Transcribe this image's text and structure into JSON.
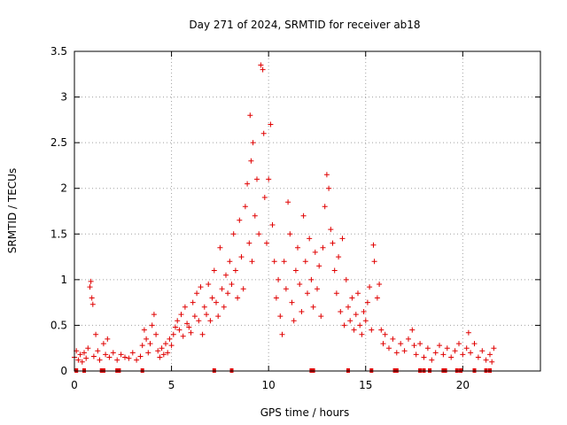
{
  "chart_data": {
    "type": "scatter",
    "title": "Day 271 of 2024, SRMTID for receiver ab18",
    "xlabel": "GPS time / hours",
    "ylabel": "SRMTID / TECUs",
    "xlim": [
      0,
      24
    ],
    "ylim": [
      0,
      3.5
    ],
    "xticks": [
      0,
      5,
      10,
      15,
      20
    ],
    "xtick_labels": [
      "0",
      "5",
      "10",
      "15",
      "20"
    ],
    "yticks": [
      0,
      0.5,
      1,
      1.5,
      2,
      2.5,
      3,
      3.5
    ],
    "ytick_labels": [
      "0",
      "0.5",
      "1",
      "1.5",
      "2",
      "2.5",
      "3",
      "3.5"
    ],
    "grid": true,
    "marker": "+",
    "color": "#e00000",
    "series": [
      {
        "name": "SRMTID",
        "points": [
          [
            0.0,
            0.15
          ],
          [
            0.1,
            0.22
          ],
          [
            0.2,
            0.12
          ],
          [
            0.3,
            0.18
          ],
          [
            0.4,
            0.1
          ],
          [
            0.5,
            0.2
          ],
          [
            0.6,
            0.14
          ],
          [
            0.7,
            0.25
          ],
          [
            0.8,
            0.92
          ],
          [
            0.85,
            0.98
          ],
          [
            0.9,
            0.8
          ],
          [
            0.95,
            0.73
          ],
          [
            1.0,
            0.16
          ],
          [
            1.1,
            0.4
          ],
          [
            1.2,
            0.22
          ],
          [
            1.3,
            0.12
          ],
          [
            1.5,
            0.3
          ],
          [
            1.6,
            0.18
          ],
          [
            1.7,
            0.35
          ],
          [
            1.8,
            0.15
          ],
          [
            2.0,
            0.2
          ],
          [
            2.2,
            0.12
          ],
          [
            2.4,
            0.18
          ],
          [
            2.6,
            0.15
          ],
          [
            2.8,
            0.14
          ],
          [
            3.0,
            0.2
          ],
          [
            3.2,
            0.12
          ],
          [
            3.4,
            0.16
          ],
          [
            3.5,
            0.28
          ],
          [
            3.6,
            0.45
          ],
          [
            3.7,
            0.35
          ],
          [
            3.8,
            0.2
          ],
          [
            3.9,
            0.3
          ],
          [
            4.0,
            0.5
          ],
          [
            4.1,
            0.62
          ],
          [
            4.2,
            0.4
          ],
          [
            4.3,
            0.22
          ],
          [
            4.4,
            0.15
          ],
          [
            4.5,
            0.25
          ],
          [
            4.6,
            0.18
          ],
          [
            4.7,
            0.3
          ],
          [
            4.8,
            0.2
          ],
          [
            4.9,
            0.35
          ],
          [
            5.0,
            0.28
          ],
          [
            5.1,
            0.4
          ],
          [
            5.2,
            0.48
          ],
          [
            5.3,
            0.55
          ],
          [
            5.4,
            0.45
          ],
          [
            5.5,
            0.62
          ],
          [
            5.6,
            0.38
          ],
          [
            5.7,
            0.7
          ],
          [
            5.8,
            0.52
          ],
          [
            5.9,
            0.48
          ],
          [
            6.0,
            0.42
          ],
          [
            6.1,
            0.75
          ],
          [
            6.2,
            0.6
          ],
          [
            6.3,
            0.85
          ],
          [
            6.4,
            0.55
          ],
          [
            6.5,
            0.92
          ],
          [
            6.6,
            0.4
          ],
          [
            6.7,
            0.7
          ],
          [
            6.8,
            0.62
          ],
          [
            6.9,
            0.95
          ],
          [
            7.0,
            0.55
          ],
          [
            7.1,
            0.8
          ],
          [
            7.2,
            1.1
          ],
          [
            7.3,
            0.75
          ],
          [
            7.4,
            0.6
          ],
          [
            7.5,
            1.35
          ],
          [
            7.6,
            0.9
          ],
          [
            7.7,
            0.7
          ],
          [
            7.8,
            1.05
          ],
          [
            7.9,
            0.85
          ],
          [
            8.0,
            1.2
          ],
          [
            8.1,
            0.95
          ],
          [
            8.2,
            1.5
          ],
          [
            8.3,
            1.1
          ],
          [
            8.4,
            0.8
          ],
          [
            8.5,
            1.65
          ],
          [
            8.6,
            1.25
          ],
          [
            8.7,
            0.9
          ],
          [
            8.8,
            1.8
          ],
          [
            8.9,
            2.05
          ],
          [
            9.0,
            1.4
          ],
          [
            9.05,
            2.8
          ],
          [
            9.1,
            2.3
          ],
          [
            9.15,
            1.2
          ],
          [
            9.2,
            2.5
          ],
          [
            9.3,
            1.7
          ],
          [
            9.4,
            2.1
          ],
          [
            9.5,
            1.5
          ],
          [
            9.6,
            3.35
          ],
          [
            9.7,
            3.3
          ],
          [
            9.75,
            2.6
          ],
          [
            9.8,
            1.9
          ],
          [
            9.9,
            1.4
          ],
          [
            10.0,
            2.1
          ],
          [
            10.1,
            2.7
          ],
          [
            10.2,
            1.6
          ],
          [
            10.3,
            1.2
          ],
          [
            10.4,
            0.8
          ],
          [
            10.5,
            1.0
          ],
          [
            10.6,
            0.6
          ],
          [
            10.7,
            0.4
          ],
          [
            10.8,
            1.2
          ],
          [
            10.9,
            0.9
          ],
          [
            11.0,
            1.85
          ],
          [
            11.1,
            1.5
          ],
          [
            11.2,
            0.75
          ],
          [
            11.3,
            0.55
          ],
          [
            11.4,
            1.1
          ],
          [
            11.5,
            1.35
          ],
          [
            11.6,
            0.95
          ],
          [
            11.7,
            0.65
          ],
          [
            11.8,
            1.7
          ],
          [
            11.9,
            1.2
          ],
          [
            12.0,
            0.85
          ],
          [
            12.1,
            1.45
          ],
          [
            12.2,
            1.0
          ],
          [
            12.3,
            0.7
          ],
          [
            12.4,
            1.3
          ],
          [
            12.5,
            0.9
          ],
          [
            12.6,
            1.15
          ],
          [
            12.7,
            0.6
          ],
          [
            12.8,
            1.35
          ],
          [
            12.9,
            1.8
          ],
          [
            13.0,
            2.15
          ],
          [
            13.1,
            2.0
          ],
          [
            13.2,
            1.55
          ],
          [
            13.3,
            1.4
          ],
          [
            13.4,
            1.1
          ],
          [
            13.5,
            0.85
          ],
          [
            13.6,
            1.25
          ],
          [
            13.7,
            0.65
          ],
          [
            13.8,
            1.45
          ],
          [
            13.9,
            0.5
          ],
          [
            14.0,
            1.0
          ],
          [
            14.1,
            0.7
          ],
          [
            14.2,
            0.55
          ],
          [
            14.3,
            0.8
          ],
          [
            14.4,
            0.45
          ],
          [
            14.5,
            0.62
          ],
          [
            14.6,
            0.85
          ],
          [
            14.7,
            0.5
          ],
          [
            14.8,
            0.4
          ],
          [
            14.9,
            0.65
          ],
          [
            15.0,
            0.55
          ],
          [
            15.1,
            0.75
          ],
          [
            15.2,
            0.92
          ],
          [
            15.3,
            0.45
          ],
          [
            15.4,
            1.38
          ],
          [
            15.45,
            1.2
          ],
          [
            15.6,
            0.8
          ],
          [
            15.7,
            0.95
          ],
          [
            15.8,
            0.45
          ],
          [
            15.9,
            0.3
          ],
          [
            16.0,
            0.4
          ],
          [
            16.2,
            0.25
          ],
          [
            16.4,
            0.35
          ],
          [
            16.6,
            0.2
          ],
          [
            16.8,
            0.3
          ],
          [
            17.0,
            0.22
          ],
          [
            17.2,
            0.35
          ],
          [
            17.4,
            0.45
          ],
          [
            17.5,
            0.28
          ],
          [
            17.6,
            0.18
          ],
          [
            17.8,
            0.3
          ],
          [
            18.0,
            0.15
          ],
          [
            18.2,
            0.25
          ],
          [
            18.4,
            0.12
          ],
          [
            18.6,
            0.2
          ],
          [
            18.8,
            0.28
          ],
          [
            19.0,
            0.18
          ],
          [
            19.2,
            0.25
          ],
          [
            19.4,
            0.15
          ],
          [
            19.6,
            0.22
          ],
          [
            19.8,
            0.3
          ],
          [
            20.0,
            0.18
          ],
          [
            20.2,
            0.25
          ],
          [
            20.3,
            0.42
          ],
          [
            20.4,
            0.2
          ],
          [
            20.6,
            0.3
          ],
          [
            20.8,
            0.15
          ],
          [
            21.0,
            0.22
          ],
          [
            21.2,
            0.12
          ],
          [
            21.4,
            0.18
          ],
          [
            21.5,
            0.1
          ],
          [
            21.6,
            0.25
          ]
        ],
        "zero_points_x": [
          0.1,
          0.5,
          1.4,
          1.5,
          2.2,
          2.3,
          3.5,
          7.2,
          8.1,
          12.2,
          12.3,
          14.1,
          15.3,
          16.5,
          16.6,
          17.8,
          18.0,
          18.3,
          19.0,
          19.1,
          19.7,
          19.9,
          20.6,
          21.2,
          21.4
        ]
      }
    ]
  }
}
